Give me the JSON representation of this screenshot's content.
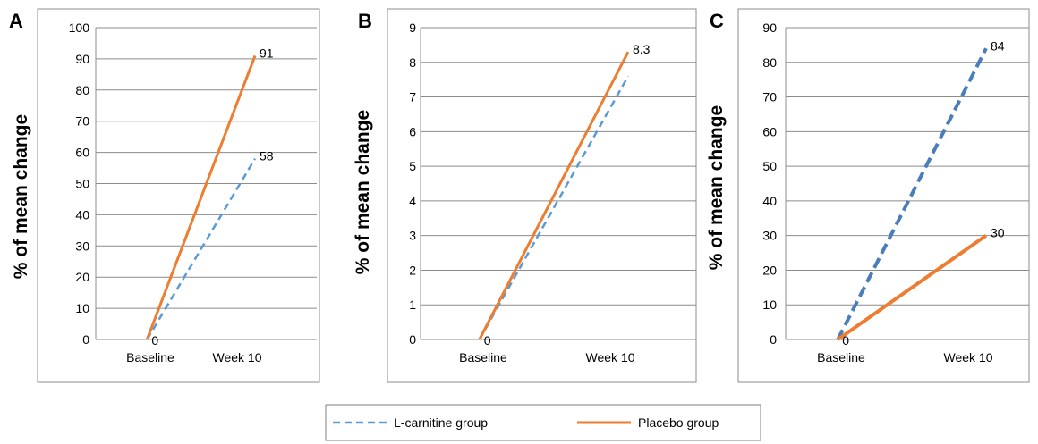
{
  "chart_data": [
    {
      "type": "line",
      "panel_label": "A",
      "ylabel": "% of mean change",
      "categories": [
        "Baseline",
        "Week 10"
      ],
      "ylim": [
        0,
        100
      ],
      "yticks": [
        0,
        10,
        20,
        30,
        40,
        50,
        60,
        70,
        80,
        90,
        100
      ],
      "grid": true,
      "series": [
        {
          "name": "L-carnitine group",
          "values": [
            0,
            58
          ],
          "data_labels": [
            "",
            "58"
          ],
          "color": "#5b9bd5",
          "style": "dashed"
        },
        {
          "name": "Placebo group",
          "values": [
            0,
            91
          ],
          "data_labels": [
            "0",
            "91"
          ],
          "color": "#ed7d31",
          "style": "solid"
        }
      ]
    },
    {
      "type": "line",
      "panel_label": "B",
      "ylabel": "% of mean change",
      "categories": [
        "Baseline",
        "Week 10"
      ],
      "ylim": [
        0,
        9
      ],
      "yticks": [
        0,
        1,
        2,
        3,
        4,
        5,
        6,
        7,
        8,
        9
      ],
      "grid": true,
      "series": [
        {
          "name": "L-carnitine group",
          "values": [
            0,
            7.6
          ],
          "data_labels": [
            "",
            ""
          ],
          "color": "#5b9bd5",
          "style": "dashed"
        },
        {
          "name": "Placebo group",
          "values": [
            0,
            8.3
          ],
          "data_labels": [
            "0",
            "8.3"
          ],
          "color": "#ed7d31",
          "style": "solid"
        }
      ]
    },
    {
      "type": "line",
      "panel_label": "C",
      "ylabel": "% of mean change",
      "categories": [
        "Baseline",
        "Week 10"
      ],
      "ylim": [
        0,
        90
      ],
      "yticks": [
        0,
        10,
        20,
        30,
        40,
        50,
        60,
        70,
        80,
        90
      ],
      "grid": true,
      "series": [
        {
          "name": "L-carnitine group",
          "values": [
            0,
            84
          ],
          "data_labels": [
            "",
            "84"
          ],
          "color": "#4a7ebb",
          "style": "dashed"
        },
        {
          "name": "Placebo group",
          "values": [
            0,
            30
          ],
          "data_labels": [
            "0",
            "30"
          ],
          "color": "#ed7d31",
          "style": "solid"
        }
      ]
    }
  ],
  "legend": {
    "placement": "bottom",
    "items": [
      {
        "label": "L-carnitine group",
        "color": "#5b9bd5",
        "style": "dashed"
      },
      {
        "label": "Placebo group",
        "color": "#ed7d31",
        "style": "solid"
      }
    ]
  }
}
